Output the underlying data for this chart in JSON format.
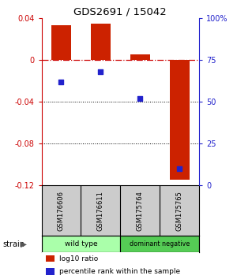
{
  "title": "GDS2691 / 15042",
  "samples": [
    "GSM176606",
    "GSM176611",
    "GSM175764",
    "GSM175765"
  ],
  "log10_ratio": [
    0.033,
    0.035,
    0.005,
    -0.115
  ],
  "percentile_rank": [
    62,
    68,
    52,
    10
  ],
  "bar_color": "#cc2200",
  "dot_color": "#2222cc",
  "ylim_left": [
    -0.12,
    0.04
  ],
  "ylim_right": [
    0,
    100
  ],
  "yticks_left": [
    0.04,
    0.0,
    -0.04,
    -0.08,
    -0.12
  ],
  "yticks_right": [
    100,
    75,
    50,
    25,
    0
  ],
  "ytick_labels_left": [
    "0.04",
    "0",
    "-0.04",
    "-0.08",
    "-0.12"
  ],
  "ytick_labels_right": [
    "100%",
    "75",
    "50",
    "25",
    "0"
  ],
  "groups": [
    {
      "label": "wild type",
      "color": "#aaffaa",
      "samples": [
        0,
        1
      ]
    },
    {
      "label": "dominant negative",
      "color": "#55cc55",
      "samples": [
        2,
        3
      ]
    }
  ],
  "strain_label": "strain",
  "legend_bar_label": "log10 ratio",
  "legend_dot_label": "percentile rank within the sample",
  "hline_y": 0.0,
  "dotted_lines": [
    -0.04,
    -0.08
  ],
  "label_bg_color": "#cccccc",
  "background_color": "#ffffff",
  "plot_bg_color": "#ffffff"
}
